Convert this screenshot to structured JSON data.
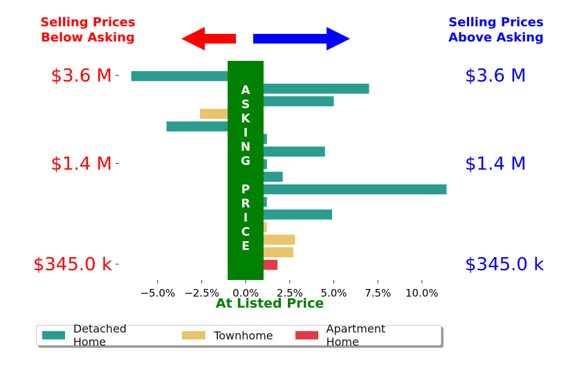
{
  "chart_data": {
    "type": "bar",
    "orientation": "horizontal",
    "header_left": [
      "Selling Prices",
      "Below Asking"
    ],
    "header_right": [
      "Selling Prices",
      "Above Asking"
    ],
    "center_band_label": "ASKING PRICE",
    "xlabel": "At Listed Price",
    "xlim": [
      -7.0,
      11.5
    ],
    "xticks": [
      -5.0,
      -2.5,
      0.0,
      2.5,
      5.0,
      7.5,
      10.0
    ],
    "xtick_labels": [
      "−5.0%",
      "−2.5%",
      "0.0%",
      "2.5%",
      "5.0%",
      "7.5%",
      "10.0%"
    ],
    "price_labels": [
      "$3.6 M",
      "$1.4 M",
      "$345.0 k"
    ],
    "price_label_rows": [
      0,
      7,
      15
    ],
    "colors": {
      "left_header": "#ff0000",
      "right_header": "#0000ff",
      "band": "#008000",
      "detached": "#2a9d8f",
      "townhome": "#e9c46a",
      "apartment": "#e63946"
    },
    "series": [
      {
        "name": "Detached Home",
        "color": "#2a9d8f"
      },
      {
        "name": "Townhome",
        "color": "#e9c46a"
      },
      {
        "name": "Apartment Home",
        "color": "#e63946"
      }
    ],
    "bars": [
      {
        "value": -6.5,
        "type": "Detached Home"
      },
      {
        "value": 7.0,
        "type": "Detached Home"
      },
      {
        "value": 5.0,
        "type": "Detached Home"
      },
      {
        "value": -2.6,
        "type": "Townhome"
      },
      {
        "value": -4.5,
        "type": "Detached Home"
      },
      {
        "value": 1.2,
        "type": "Detached Home"
      },
      {
        "value": 4.5,
        "type": "Detached Home"
      },
      {
        "value": 1.2,
        "type": "Detached Home"
      },
      {
        "value": 2.1,
        "type": "Detached Home"
      },
      {
        "value": 11.4,
        "type": "Detached Home"
      },
      {
        "value": 1.2,
        "type": "Detached Home"
      },
      {
        "value": 4.9,
        "type": "Detached Home"
      },
      {
        "value": 1.2,
        "type": "Townhome"
      },
      {
        "value": 2.8,
        "type": "Townhome"
      },
      {
        "value": 2.7,
        "type": "Townhome"
      },
      {
        "value": 1.8,
        "type": "Apartment Home"
      }
    ]
  }
}
